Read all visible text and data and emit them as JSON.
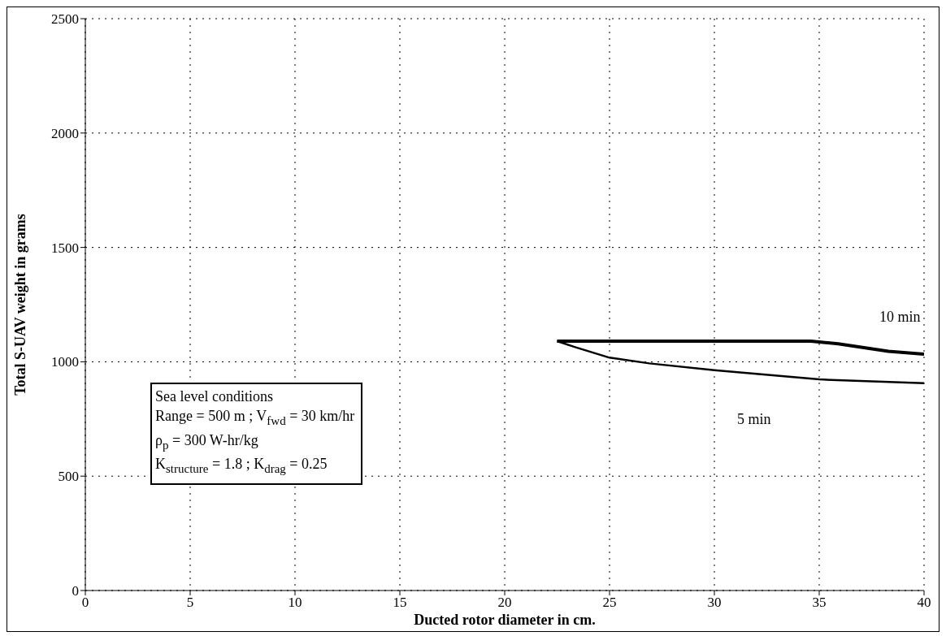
{
  "chart_data": {
    "type": "line",
    "xlabel": "Ducted rotor diameter in cm.",
    "ylabel": "Total S-UAV weight in grams",
    "xlim": [
      0,
      40
    ],
    "xticks": [
      0,
      5,
      10,
      15,
      20,
      25,
      30,
      35,
      40
    ],
    "ylim": [
      0,
      2500
    ],
    "yticks": [
      0,
      500,
      1000,
      1500,
      2000,
      2500
    ],
    "grid": true,
    "marker": "none",
    "line_style": "solid",
    "series": [
      {
        "name": "10 min",
        "color": "#000000",
        "x": [
          22.5,
          34.6,
          35.9,
          38.3,
          40
        ],
        "values": [
          1090,
          1090,
          1079,
          1046,
          1033
        ]
      },
      {
        "name": "5 min",
        "color": "#000000",
        "x": [
          22.5,
          23.3,
          25,
          26.9,
          30,
          35,
          40
        ],
        "values": [
          1090,
          1066,
          1018,
          993,
          963,
          923,
          906
        ]
      }
    ],
    "annotations": [
      "Sea level conditions",
      "Range = 500 m ; V$_{fwd}$ = 30 km/hr",
      "ρ$_{p}$ = 300 W-hr/kg",
      "K$_{structure}$ = 1.8 ; K$_{drag}$ = 0.25"
    ]
  }
}
